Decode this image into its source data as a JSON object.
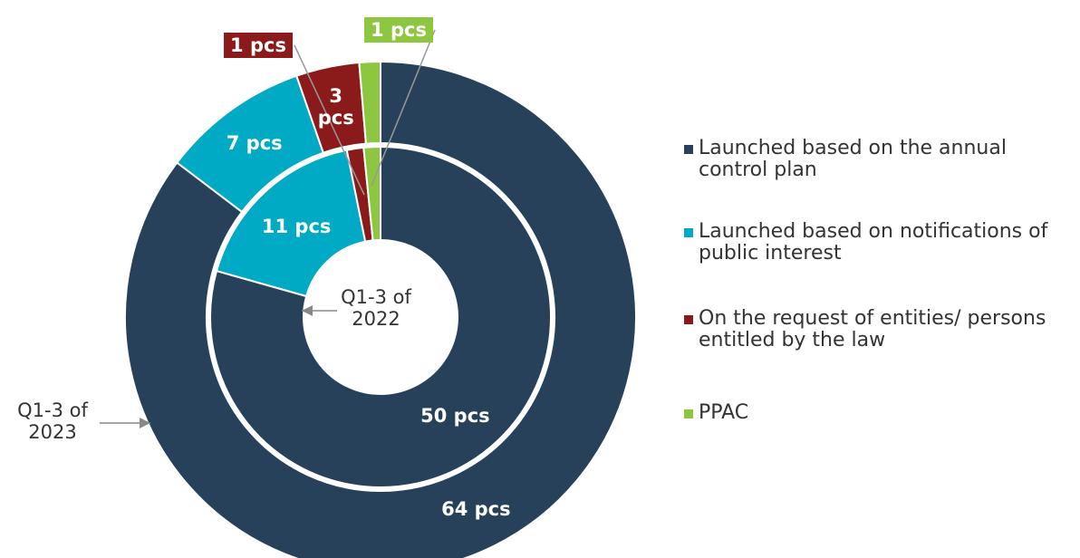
{
  "chart_data": {
    "type": "nested_donut",
    "categories": [
      "Launched based on the annual control plan",
      "Launched based on notifications of public interest",
      "On the request of entities/ persons entitled by the law",
      "PPAC"
    ],
    "colors": [
      "#264159",
      "#00a9c4",
      "#8b1a1a",
      "#8dc63f"
    ],
    "series": [
      {
        "name": "Q1-3 of 2023",
        "values": [
          64,
          7,
          3,
          1
        ],
        "value_labels": [
          "64 pcs",
          "7 pcs",
          "3 pcs",
          null
        ]
      },
      {
        "name": "Q1-3 of 2022",
        "values": [
          50,
          11,
          1,
          1
        ],
        "value_labels": [
          "50 pcs",
          "11 pcs",
          "1 pcs",
          "1 pcs"
        ]
      }
    ],
    "legend": "right"
  }
}
